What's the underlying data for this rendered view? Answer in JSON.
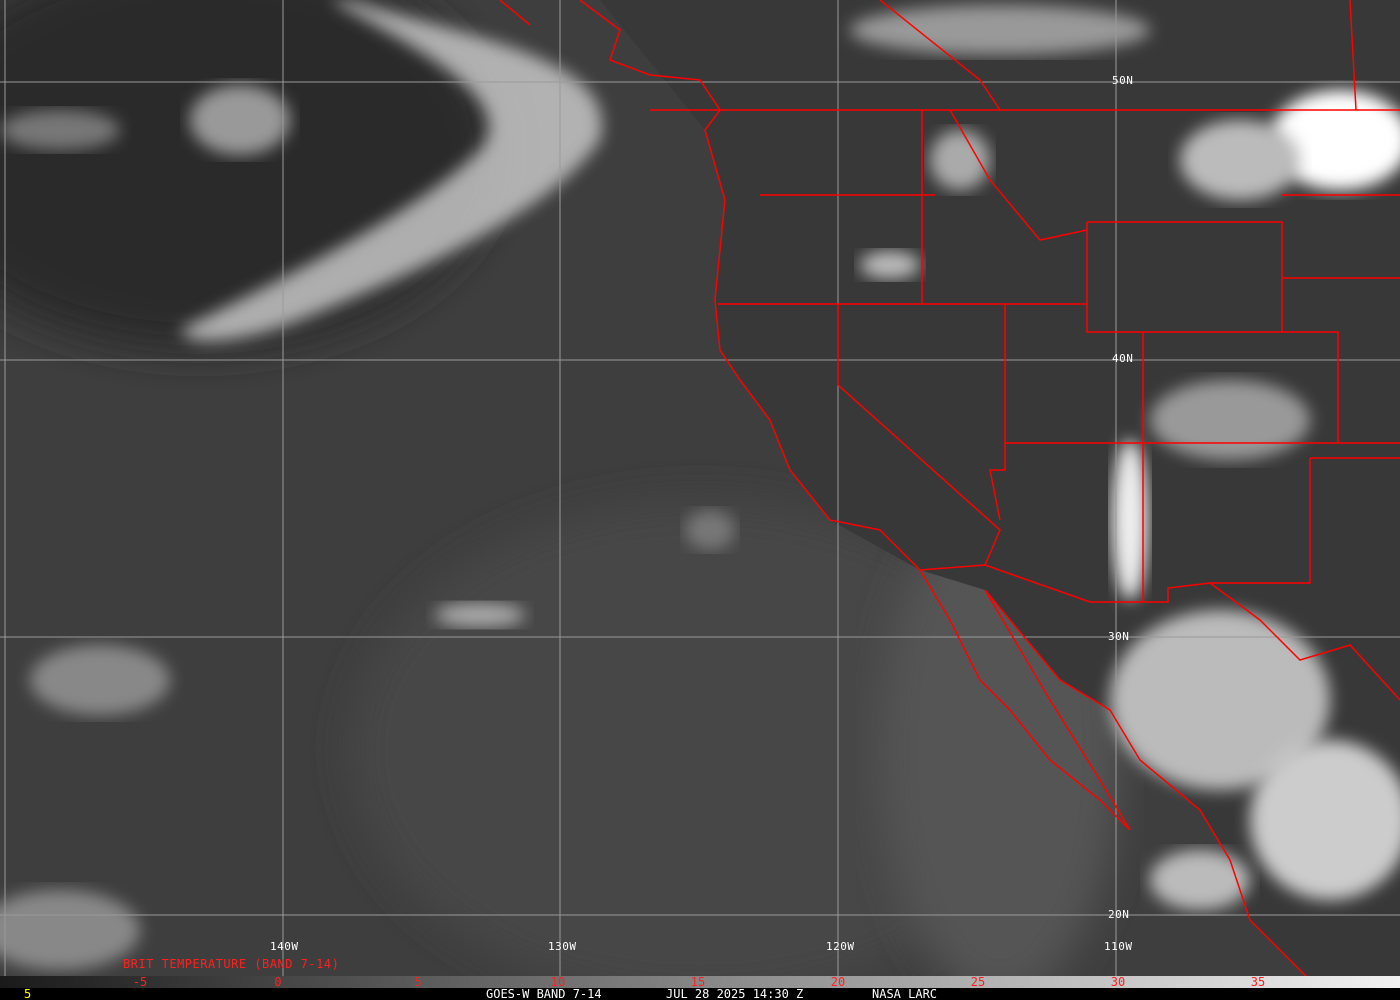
{
  "image": {
    "satellite": "GOES-W",
    "band": "BAND 7-14",
    "date": "JUL 28 2025",
    "time": "14:30 Z",
    "source": "NASA LARC",
    "footer_left": "5",
    "footer_title": "GOES-W BAND 7-14",
    "footer_datetime": "JUL 28 2025 14:30 Z"
  },
  "longitude_labels": [
    "140W",
    "130W",
    "120W",
    "110W"
  ],
  "latitude_labels": [
    "50N",
    "40N",
    "30N",
    "20N"
  ],
  "colorbar": {
    "title": "BRIT TEMPERATURE (BAND 7-14)",
    "ticks": [
      "-5",
      "0",
      "5",
      "10",
      "15",
      "20",
      "25",
      "30",
      "35"
    ],
    "gradient": [
      "#1a1a1a",
      "#f2f2f2"
    ]
  },
  "colors": {
    "borders": "#ff0000",
    "grid": "#9a9a9a",
    "labels": "#ffffff",
    "legend_text": "#ff2020",
    "footer_left": "#ffff00"
  }
}
